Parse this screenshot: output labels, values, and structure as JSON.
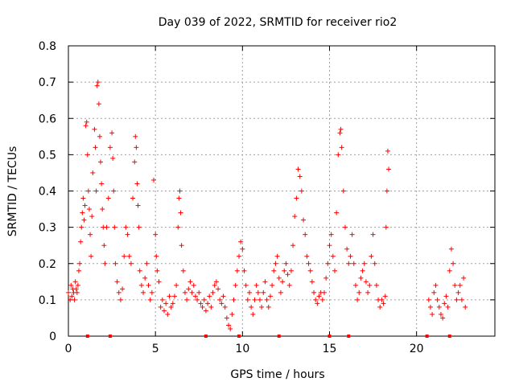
{
  "chart_data": {
    "type": "scatter",
    "title": "Day 039 of 2022, SRMTID for receiver rio2",
    "xlabel": "GPS time / hours",
    "ylabel": "SRMTID / TECUs",
    "xlim": [
      0,
      24.5
    ],
    "ylim": [
      0,
      0.8
    ],
    "x_ticks": [
      0,
      5,
      10,
      15,
      20
    ],
    "x_tick_labels": [
      "0",
      "5",
      "10",
      "15",
      "20"
    ],
    "y_ticks": [
      0,
      0.1,
      0.2,
      0.3,
      0.4,
      0.5,
      0.6,
      0.7,
      0.8
    ],
    "y_tick_labels": [
      "0",
      "0.1",
      "0.2",
      "0.3",
      "0.4",
      "0.5",
      "0.6",
      "0.7",
      "0.8"
    ],
    "grid": true,
    "marker": "+",
    "color": "#ff0000",
    "series": [
      {
        "name": "SRMTID",
        "points": [
          [
            0.0,
            0.12
          ],
          [
            0.1,
            0.1
          ],
          [
            0.15,
            0.14
          ],
          [
            0.2,
            0.11
          ],
          [
            0.25,
            0.13
          ],
          [
            0.3,
            0.12
          ],
          [
            0.35,
            0.1
          ],
          [
            0.4,
            0.15
          ],
          [
            0.45,
            0.13
          ],
          [
            0.5,
            0.12
          ],
          [
            0.55,
            0.14
          ],
          [
            0.6,
            0.18
          ],
          [
            0.65,
            0.2
          ],
          [
            0.7,
            0.26
          ],
          [
            0.75,
            0.3
          ],
          [
            0.8,
            0.34
          ],
          [
            0.85,
            0.38
          ],
          [
            0.9,
            0.32
          ],
          [
            0.95,
            0.36
          ],
          [
            1.0,
            0.58
          ],
          [
            1.05,
            0.59
          ],
          [
            1.1,
            0.5
          ],
          [
            1.15,
            0.4
          ],
          [
            1.2,
            0.35
          ],
          [
            1.25,
            0.28
          ],
          [
            1.3,
            0.22
          ],
          [
            1.35,
            0.33
          ],
          [
            1.4,
            0.45
          ],
          [
            1.5,
            0.57
          ],
          [
            1.55,
            0.52
          ],
          [
            1.6,
            0.4
          ],
          [
            1.65,
            0.69
          ],
          [
            1.7,
            0.7
          ],
          [
            1.75,
            0.64
          ],
          [
            1.8,
            0.55
          ],
          [
            1.85,
            0.48
          ],
          [
            1.9,
            0.42
          ],
          [
            1.95,
            0.35
          ],
          [
            2.0,
            0.3
          ],
          [
            2.05,
            0.25
          ],
          [
            2.1,
            0.2
          ],
          [
            2.2,
            0.3
          ],
          [
            2.3,
            0.38
          ],
          [
            2.4,
            0.52
          ],
          [
            2.5,
            0.56
          ],
          [
            2.55,
            0.49
          ],
          [
            2.6,
            0.4
          ],
          [
            2.65,
            0.3
          ],
          [
            2.7,
            0.2
          ],
          [
            2.8,
            0.15
          ],
          [
            2.9,
            0.12
          ],
          [
            3.0,
            0.1
          ],
          [
            3.1,
            0.13
          ],
          [
            3.2,
            0.22
          ],
          [
            3.3,
            0.3
          ],
          [
            3.4,
            0.28
          ],
          [
            3.5,
            0.22
          ],
          [
            3.6,
            0.2
          ],
          [
            3.7,
            0.38
          ],
          [
            3.8,
            0.48
          ],
          [
            3.85,
            0.55
          ],
          [
            3.9,
            0.52
          ],
          [
            3.95,
            0.42
          ],
          [
            4.0,
            0.36
          ],
          [
            4.05,
            0.3
          ],
          [
            4.1,
            0.18
          ],
          [
            4.2,
            0.14
          ],
          [
            4.3,
            0.12
          ],
          [
            4.4,
            0.16
          ],
          [
            4.5,
            0.2
          ],
          [
            4.6,
            0.14
          ],
          [
            4.7,
            0.1
          ],
          [
            4.8,
            0.12
          ],
          [
            4.9,
            0.43
          ],
          [
            5.0,
            0.28
          ],
          [
            5.05,
            0.22
          ],
          [
            5.1,
            0.18
          ],
          [
            5.2,
            0.15
          ],
          [
            5.3,
            0.08
          ],
          [
            5.4,
            0.1
          ],
          [
            5.5,
            0.07
          ],
          [
            5.6,
            0.09
          ],
          [
            5.7,
            0.06
          ],
          [
            5.8,
            0.11
          ],
          [
            5.9,
            0.08
          ],
          [
            6.0,
            0.09
          ],
          [
            6.1,
            0.11
          ],
          [
            6.2,
            0.14
          ],
          [
            6.3,
            0.3
          ],
          [
            6.35,
            0.38
          ],
          [
            6.4,
            0.4
          ],
          [
            6.45,
            0.34
          ],
          [
            6.5,
            0.25
          ],
          [
            6.6,
            0.18
          ],
          [
            6.7,
            0.12
          ],
          [
            6.8,
            0.1
          ],
          [
            6.9,
            0.13
          ],
          [
            7.0,
            0.15
          ],
          [
            7.1,
            0.12
          ],
          [
            7.2,
            0.14
          ],
          [
            7.3,
            0.11
          ],
          [
            7.4,
            0.1
          ],
          [
            7.5,
            0.12
          ],
          [
            7.6,
            0.09
          ],
          [
            7.7,
            0.08
          ],
          [
            7.8,
            0.1
          ],
          [
            7.9,
            0.07
          ],
          [
            8.0,
            0.09
          ],
          [
            8.1,
            0.11
          ],
          [
            8.2,
            0.08
          ],
          [
            8.3,
            0.12
          ],
          [
            8.4,
            0.14
          ],
          [
            8.5,
            0.15
          ],
          [
            8.6,
            0.13
          ],
          [
            8.7,
            0.1
          ],
          [
            8.8,
            0.09
          ],
          [
            8.9,
            0.11
          ],
          [
            9.0,
            0.08
          ],
          [
            9.1,
            0.05
          ],
          [
            9.2,
            0.03
          ],
          [
            9.3,
            0.02
          ],
          [
            9.4,
            0.06
          ],
          [
            9.5,
            0.1
          ],
          [
            9.6,
            0.14
          ],
          [
            9.7,
            0.18
          ],
          [
            9.8,
            0.22
          ],
          [
            9.9,
            0.26
          ],
          [
            10.0,
            0.24
          ],
          [
            10.1,
            0.18
          ],
          [
            10.2,
            0.14
          ],
          [
            10.3,
            0.1
          ],
          [
            10.4,
            0.12
          ],
          [
            10.5,
            0.08
          ],
          [
            10.6,
            0.06
          ],
          [
            10.7,
            0.1
          ],
          [
            10.8,
            0.14
          ],
          [
            10.9,
            0.12
          ],
          [
            11.0,
            0.1
          ],
          [
            11.1,
            0.08
          ],
          [
            11.2,
            0.12
          ],
          [
            11.3,
            0.15
          ],
          [
            11.4,
            0.1
          ],
          [
            11.5,
            0.08
          ],
          [
            11.6,
            0.11
          ],
          [
            11.7,
            0.14
          ],
          [
            11.8,
            0.18
          ],
          [
            11.9,
            0.2
          ],
          [
            12.0,
            0.22
          ],
          [
            12.1,
            0.16
          ],
          [
            12.2,
            0.12
          ],
          [
            12.3,
            0.15
          ],
          [
            12.4,
            0.18
          ],
          [
            12.5,
            0.2
          ],
          [
            12.6,
            0.17
          ],
          [
            12.7,
            0.14
          ],
          [
            12.8,
            0.18
          ],
          [
            12.9,
            0.25
          ],
          [
            13.0,
            0.33
          ],
          [
            13.1,
            0.38
          ],
          [
            13.2,
            0.46
          ],
          [
            13.3,
            0.44
          ],
          [
            13.4,
            0.4
          ],
          [
            13.5,
            0.32
          ],
          [
            13.6,
            0.28
          ],
          [
            13.7,
            0.22
          ],
          [
            13.8,
            0.2
          ],
          [
            13.9,
            0.18
          ],
          [
            14.0,
            0.15
          ],
          [
            14.1,
            0.12
          ],
          [
            14.2,
            0.1
          ],
          [
            14.3,
            0.09
          ],
          [
            14.4,
            0.11
          ],
          [
            14.5,
            0.12
          ],
          [
            14.6,
            0.1
          ],
          [
            14.7,
            0.12
          ],
          [
            14.8,
            0.16
          ],
          [
            14.9,
            0.2
          ],
          [
            15.0,
            0.25
          ],
          [
            15.1,
            0.28
          ],
          [
            15.2,
            0.22
          ],
          [
            15.3,
            0.18
          ],
          [
            15.4,
            0.34
          ],
          [
            15.5,
            0.5
          ],
          [
            15.6,
            0.56
          ],
          [
            15.65,
            0.57
          ],
          [
            15.7,
            0.52
          ],
          [
            15.8,
            0.4
          ],
          [
            15.9,
            0.3
          ],
          [
            16.0,
            0.24
          ],
          [
            16.1,
            0.2
          ],
          [
            16.2,
            0.22
          ],
          [
            16.3,
            0.28
          ],
          [
            16.4,
            0.2
          ],
          [
            16.5,
            0.14
          ],
          [
            16.6,
            0.1
          ],
          [
            16.7,
            0.12
          ],
          [
            16.8,
            0.16
          ],
          [
            16.9,
            0.18
          ],
          [
            17.0,
            0.2
          ],
          [
            17.1,
            0.15
          ],
          [
            17.2,
            0.12
          ],
          [
            17.3,
            0.14
          ],
          [
            17.4,
            0.22
          ],
          [
            17.5,
            0.28
          ],
          [
            17.6,
            0.2
          ],
          [
            17.7,
            0.14
          ],
          [
            17.8,
            0.1
          ],
          [
            17.9,
            0.08
          ],
          [
            18.0,
            0.1
          ],
          [
            18.1,
            0.09
          ],
          [
            18.2,
            0.11
          ],
          [
            18.25,
            0.3
          ],
          [
            18.3,
            0.4
          ],
          [
            18.35,
            0.51
          ],
          [
            18.4,
            0.46
          ],
          [
            20.7,
            0.1
          ],
          [
            20.8,
            0.08
          ],
          [
            20.9,
            0.06
          ],
          [
            21.0,
            0.12
          ],
          [
            21.1,
            0.14
          ],
          [
            21.2,
            0.1
          ],
          [
            21.3,
            0.08
          ],
          [
            21.4,
            0.06
          ],
          [
            21.5,
            0.05
          ],
          [
            21.6,
            0.09
          ],
          [
            21.7,
            0.11
          ],
          [
            21.8,
            0.08
          ],
          [
            21.9,
            0.18
          ],
          [
            22.0,
            0.24
          ],
          [
            22.1,
            0.2
          ],
          [
            22.2,
            0.14
          ],
          [
            22.3,
            0.1
          ],
          [
            22.4,
            0.12
          ],
          [
            22.5,
            0.14
          ],
          [
            22.6,
            0.1
          ],
          [
            22.7,
            0.16
          ],
          [
            22.8,
            0.08
          ]
        ]
      },
      {
        "name": "zero markers",
        "marker": "square",
        "points": [
          [
            1.1,
            0
          ],
          [
            2.4,
            0
          ],
          [
            7.9,
            0
          ],
          [
            9.8,
            0
          ],
          [
            12.1,
            0
          ],
          [
            15.0,
            0
          ],
          [
            16.1,
            0
          ],
          [
            20.6,
            0
          ],
          [
            21.9,
            0
          ]
        ]
      }
    ]
  }
}
